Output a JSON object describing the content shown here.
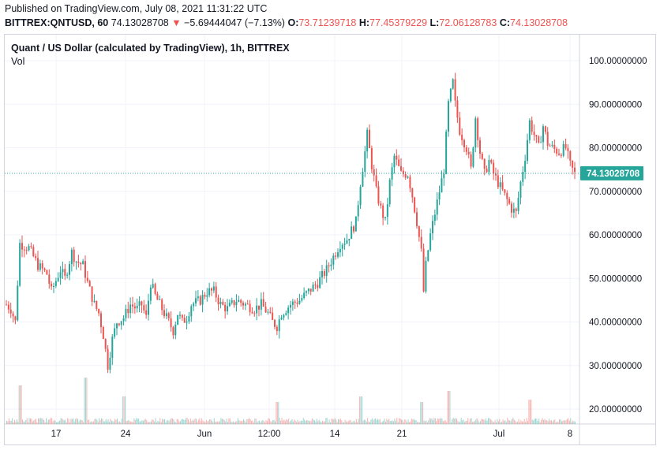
{
  "header": {
    "published": "Published on TradingView.com, July 08, 2021 11:31:22 UTC",
    "symbol": "BITTREX:QNTUSD, 60",
    "last": "74.13028708",
    "change": "−5.69444047 (−7.13%)",
    "o_label": "O:",
    "o_value": "73.71239718",
    "h_label": "H:",
    "h_value": "77.45379229",
    "l_label": "L:",
    "l_value": "72.06128783",
    "c_label": "C:",
    "c_value": "74.13028708"
  },
  "legend": {
    "title": "Quant / US Dollar (calculated by TradingView), 1h, BITTREX",
    "vol": "Vol"
  },
  "colors": {
    "up": "#26a69a",
    "down": "#ef5350",
    "price_line": "#26a69a",
    "grid": "#f0f3fa",
    "axis_text": "#131722"
  },
  "chart_data": {
    "type": "candlestick",
    "price_axis": {
      "ticks": [
        20,
        30,
        40,
        50,
        60,
        70,
        80,
        90,
        100
      ],
      "tick_labels": [
        "20.00000000",
        "30.00000000",
        "40.00000000",
        "50.00000000",
        "60.00000000",
        "70.00000000",
        "80.00000000",
        "90.00000000",
        "100.00000000"
      ]
    },
    "time_axis": {
      "ticks": [
        "17",
        "24",
        "Jun",
        "12:00",
        "14",
        "21",
        "Jul",
        "8"
      ]
    },
    "last_price": 74.13028708,
    "last_price_label": "74.13028708",
    "trend_points": [
      [
        0,
        44
      ],
      [
        2,
        43
      ],
      [
        4,
        40
      ],
      [
        6,
        58
      ],
      [
        10,
        57
      ],
      [
        14,
        53
      ],
      [
        18,
        51
      ],
      [
        20,
        47
      ],
      [
        24,
        52
      ],
      [
        26,
        50
      ],
      [
        29,
        56
      ],
      [
        31,
        54
      ],
      [
        34,
        53
      ],
      [
        36,
        49
      ],
      [
        39,
        44
      ],
      [
        41,
        42
      ],
      [
        43,
        37
      ],
      [
        45,
        30
      ],
      [
        47,
        36
      ],
      [
        49,
        40
      ],
      [
        52,
        41
      ],
      [
        55,
        44
      ],
      [
        58,
        43
      ],
      [
        60,
        44
      ],
      [
        62,
        41
      ],
      [
        64,
        49
      ],
      [
        66,
        46
      ],
      [
        68,
        44
      ],
      [
        70,
        42
      ],
      [
        72,
        40
      ],
      [
        74,
        38
      ],
      [
        76,
        42
      ],
      [
        78,
        40
      ],
      [
        80,
        41
      ],
      [
        82,
        44
      ],
      [
        86,
        45
      ],
      [
        89,
        47
      ],
      [
        92,
        47
      ],
      [
        95,
        44
      ],
      [
        98,
        43
      ],
      [
        102,
        45
      ],
      [
        106,
        44
      ],
      [
        110,
        43
      ],
      [
        113,
        44
      ],
      [
        116,
        42
      ],
      [
        118,
        40
      ],
      [
        120,
        39
      ],
      [
        122,
        42
      ],
      [
        126,
        44
      ],
      [
        130,
        45
      ],
      [
        134,
        47
      ],
      [
        138,
        49
      ],
      [
        142,
        52
      ],
      [
        145,
        55
      ],
      [
        148,
        58
      ],
      [
        151,
        59
      ],
      [
        153,
        61
      ],
      [
        155,
        63
      ],
      [
        157,
        72
      ],
      [
        159,
        79
      ],
      [
        160,
        83
      ],
      [
        162,
        76
      ],
      [
        164,
        70
      ],
      [
        166,
        66
      ],
      [
        168,
        63
      ],
      [
        170,
        72
      ],
      [
        172,
        78
      ],
      [
        175,
        74
      ],
      [
        178,
        74
      ],
      [
        180,
        69
      ],
      [
        182,
        63
      ],
      [
        184,
        56
      ],
      [
        185,
        47
      ],
      [
        186,
        53
      ],
      [
        188,
        60
      ],
      [
        190,
        65
      ],
      [
        192,
        70
      ],
      [
        194,
        75
      ],
      [
        196,
        90
      ],
      [
        198,
        95
      ],
      [
        199,
        90
      ],
      [
        201,
        84
      ],
      [
        204,
        80
      ],
      [
        206,
        75
      ],
      [
        208,
        87
      ],
      [
        210,
        79
      ],
      [
        212,
        74
      ],
      [
        214,
        77
      ],
      [
        216,
        74
      ],
      [
        218,
        72
      ],
      [
        220,
        70
      ],
      [
        222,
        68
      ],
      [
        224,
        66
      ],
      [
        226,
        65
      ],
      [
        228,
        72
      ],
      [
        230,
        78
      ],
      [
        232,
        86
      ],
      [
        234,
        83
      ],
      [
        236,
        80
      ],
      [
        238,
        85
      ],
      [
        240,
        81
      ],
      [
        242,
        80
      ],
      [
        245,
        79
      ],
      [
        248,
        80
      ],
      [
        250,
        76
      ],
      [
        252,
        74
      ]
    ],
    "volume_spikes": [
      [
        6,
        0.35
      ],
      [
        35,
        0.42
      ],
      [
        52,
        0.25
      ],
      [
        120,
        0.2
      ],
      [
        157,
        0.25
      ],
      [
        184,
        0.2
      ],
      [
        196,
        0.3
      ],
      [
        232,
        0.22
      ]
    ]
  }
}
